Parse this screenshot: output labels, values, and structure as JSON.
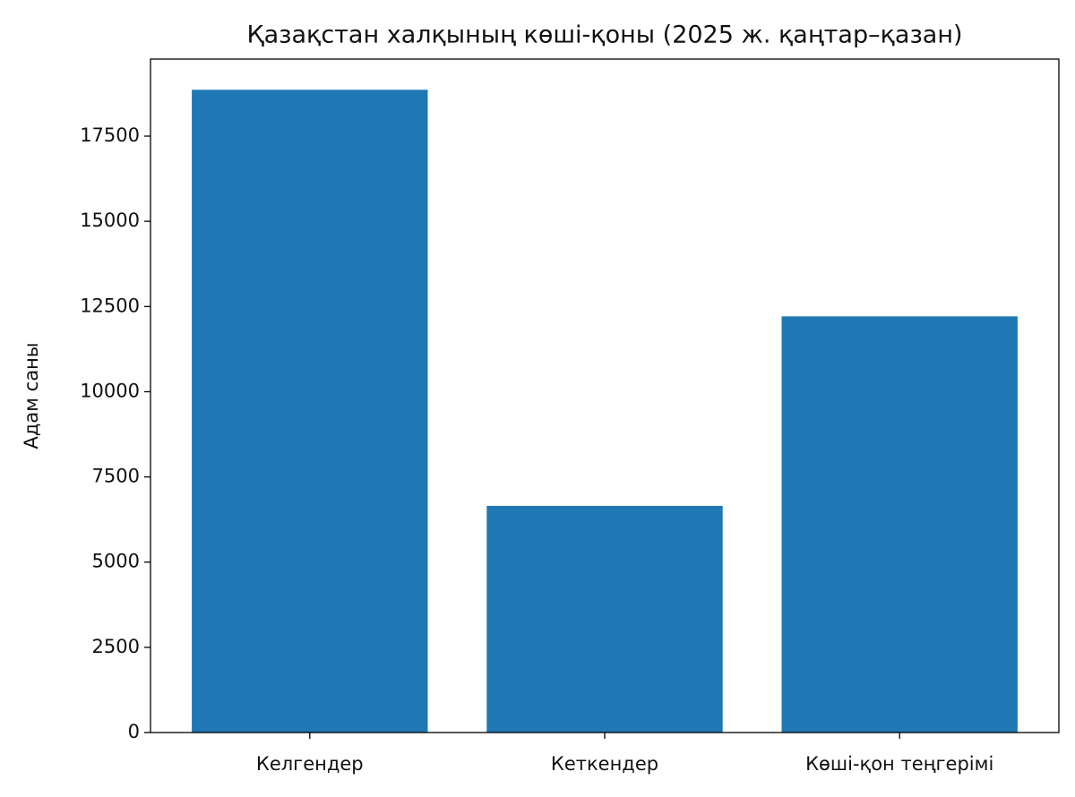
{
  "chart_data": {
    "type": "bar",
    "title": "Қазақстан халқының көші-қоны (2025 ж. қаңтар–қазан)",
    "y_label": "Адам саны",
    "categories": [
      "Келгендер",
      "Кеткендер",
      "Көші-қон теңгерімі"
    ],
    "values": [
      18860,
      6650,
      12210
    ],
    "color": "#1f77b4",
    "ylim": [
      0,
      19760
    ],
    "yticks": [
      0,
      2500,
      5000,
      7500,
      10000,
      12500,
      15000,
      17500
    ]
  }
}
